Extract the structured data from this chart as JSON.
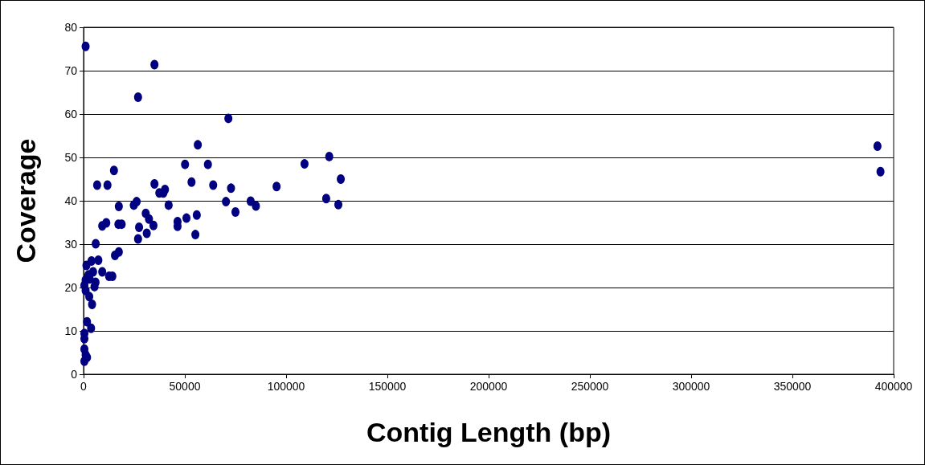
{
  "chart_data": {
    "type": "scatter",
    "xlabel": "Contig Length (bp)",
    "ylabel": "Coverage",
    "xlim": [
      0,
      400000
    ],
    "xticks": [
      0,
      50000,
      100000,
      150000,
      200000,
      250000,
      300000,
      350000,
      400000
    ],
    "ylim": [
      0,
      80
    ],
    "yticks": [
      0,
      10,
      20,
      30,
      40,
      50,
      60,
      70,
      80
    ],
    "grid": "y",
    "marker": "circle",
    "series": [
      {
        "color": "#000080",
        "x": [
          1000,
          35000,
          26900,
          71500,
          56400,
          50100,
          61400,
          15000,
          6700,
          11800,
          35000,
          53300,
          64000,
          72800,
          37400,
          39400,
          40200,
          24800,
          26200,
          42000,
          70300,
          75000,
          17400,
          9200,
          11200,
          17200,
          18800,
          30700,
          32300,
          34500,
          27400,
          26900,
          31200,
          46400,
          46400,
          50800,
          55900,
          55200,
          6000,
          15500,
          17400,
          7300,
          1400,
          3900,
          9200,
          12600,
          14200,
          4700,
          2400,
          1000,
          3000,
          5900,
          5400,
          400,
          1000,
          2800,
          4200,
          1700,
          3700,
          400,
          400,
          400,
          1000,
          400,
          1700,
          95300,
          109100,
          121300,
          119800,
          127000,
          125800,
          82500,
          85100,
          392000,
          393500
        ],
        "values": [
          75.6,
          71.4,
          63.9,
          59.0,
          52.9,
          48.4,
          48.4,
          47.0,
          43.6,
          43.6,
          43.9,
          44.3,
          43.6,
          42.9,
          41.8,
          41.8,
          42.6,
          39.0,
          39.8,
          39.0,
          39.8,
          37.4,
          38.7,
          34.2,
          34.9,
          34.6,
          34.6,
          37.1,
          35.8,
          34.3,
          33.9,
          31.2,
          32.5,
          35.2,
          34.1,
          36.0,
          36.7,
          32.2,
          30.1,
          27.4,
          28.2,
          26.3,
          25.1,
          26.1,
          23.6,
          22.6,
          22.6,
          23.6,
          22.9,
          21.7,
          22.0,
          21.2,
          20.2,
          20.5,
          19.3,
          17.9,
          16.1,
          12.1,
          10.6,
          9.4,
          8.2,
          5.8,
          4.5,
          3.0,
          3.9,
          43.3,
          48.5,
          50.2,
          40.5,
          45.0,
          39.1,
          39.9,
          38.8,
          52.6,
          46.7
        ]
      }
    ]
  }
}
